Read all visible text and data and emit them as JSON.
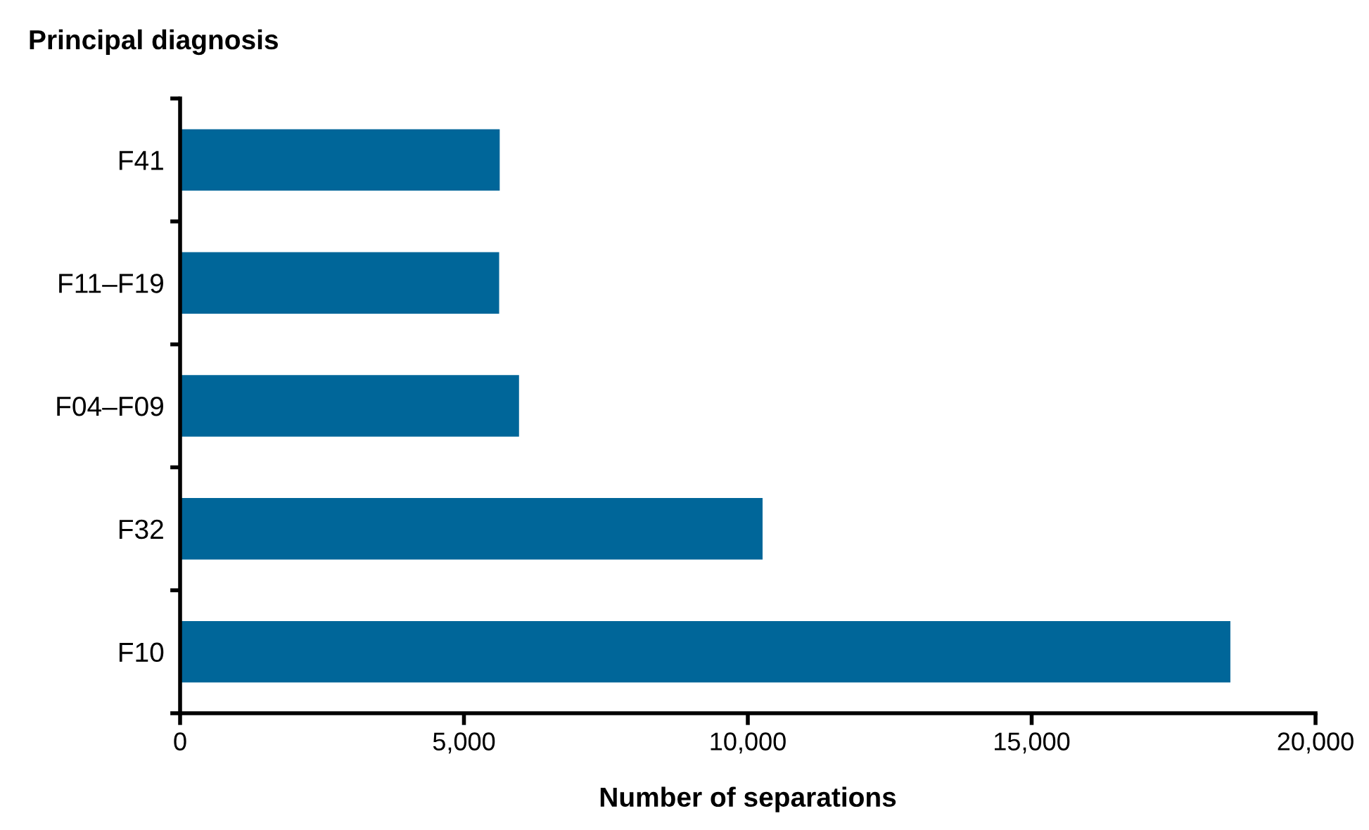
{
  "chart_data": {
    "type": "bar",
    "orientation": "horizontal",
    "ylabel": "Principal diagnosis",
    "xlabel": "Number of separations",
    "categories": [
      "F41",
      "F11–F19",
      "F04–F09",
      "F32",
      "F10"
    ],
    "values": [
      5630,
      5620,
      5970,
      10260,
      18500
    ],
    "color": "#006699",
    "xlim": [
      0,
      20000
    ],
    "xticks": [
      {
        "value": 0,
        "label": "0"
      },
      {
        "value": 5000,
        "label": "5,000"
      },
      {
        "value": 10000,
        "label": "10,000"
      },
      {
        "value": 15000,
        "label": "15,000"
      },
      {
        "value": 20000,
        "label": "20,000"
      }
    ],
    "grid": false,
    "legend": false
  }
}
